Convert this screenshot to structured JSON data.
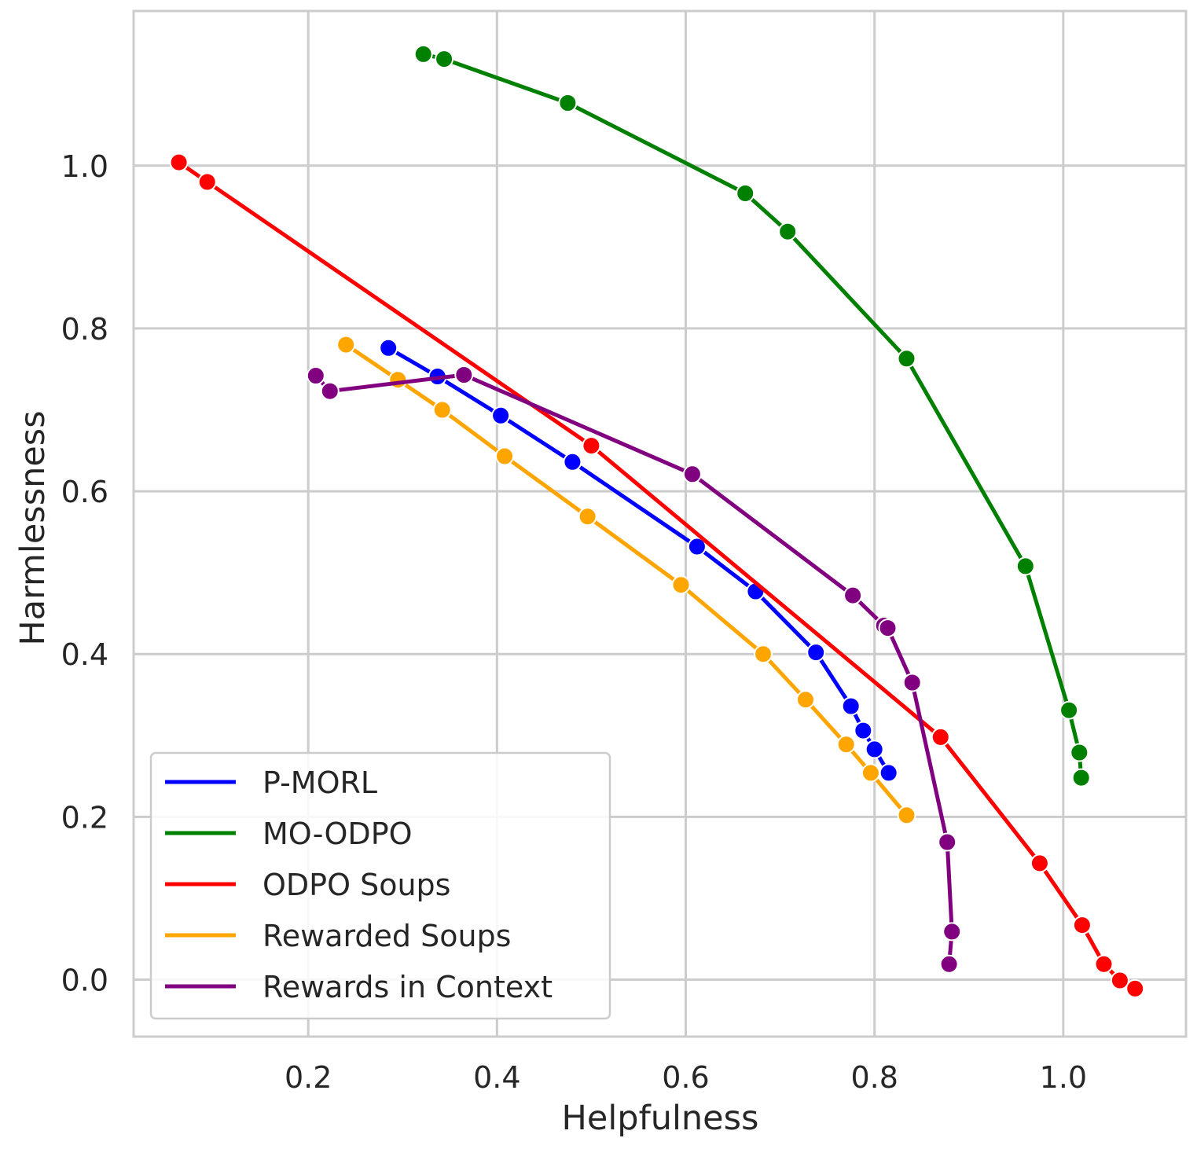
{
  "chart_data": {
    "type": "line",
    "title": "",
    "xlabel": "Helpfulness",
    "ylabel": "Harmlessness",
    "xlim": [
      0.015,
      1.13
    ],
    "ylim": [
      -0.07,
      1.19
    ],
    "xticks": [
      0.2,
      0.4,
      0.6,
      0.8,
      1.0
    ],
    "yticks": [
      0.0,
      0.2,
      0.4,
      0.6,
      0.8,
      1.0
    ],
    "xtick_labels": [
      "0.2",
      "0.4",
      "0.6",
      "0.8",
      "1.0"
    ],
    "ytick_labels": [
      "0.0",
      "0.2",
      "0.4",
      "0.6",
      "0.8",
      "1.0"
    ],
    "grid": true,
    "legend_position": "bottom-left",
    "series": [
      {
        "name": "P-MORL",
        "color": "#0000ff",
        "points": [
          [
            0.285,
            0.776
          ],
          [
            0.337,
            0.741
          ],
          [
            0.404,
            0.693
          ],
          [
            0.48,
            0.636
          ],
          [
            0.612,
            0.532
          ],
          [
            0.674,
            0.477
          ],
          [
            0.738,
            0.402
          ],
          [
            0.775,
            0.336
          ],
          [
            0.788,
            0.306
          ],
          [
            0.8,
            0.283
          ],
          [
            0.815,
            0.254
          ]
        ]
      },
      {
        "name": "MO-ODPO",
        "color": "#008000",
        "points": [
          [
            0.322,
            1.137
          ],
          [
            0.344,
            1.131
          ],
          [
            0.475,
            1.077
          ],
          [
            0.663,
            0.966
          ],
          [
            0.708,
            0.919
          ],
          [
            0.834,
            0.763
          ],
          [
            0.96,
            0.508
          ],
          [
            1.006,
            0.331
          ],
          [
            1.017,
            0.279
          ],
          [
            1.019,
            0.248
          ]
        ]
      },
      {
        "name": "ODPO Soups",
        "color": "#ff0000",
        "points": [
          [
            0.063,
            1.004
          ],
          [
            0.093,
            0.98
          ],
          [
            0.5,
            0.656
          ],
          [
            0.87,
            0.298
          ],
          [
            0.975,
            0.143
          ],
          [
            1.02,
            0.067
          ],
          [
            1.043,
            0.019
          ],
          [
            1.06,
            -0.001
          ],
          [
            1.076,
            -0.011
          ]
        ]
      },
      {
        "name": "Rewarded Soups",
        "color": "#ffa500",
        "points": [
          [
            0.24,
            0.78
          ],
          [
            0.295,
            0.737
          ],
          [
            0.342,
            0.7
          ],
          [
            0.408,
            0.643
          ],
          [
            0.496,
            0.569
          ],
          [
            0.595,
            0.485
          ],
          [
            0.682,
            0.4
          ],
          [
            0.727,
            0.344
          ],
          [
            0.77,
            0.289
          ],
          [
            0.796,
            0.254
          ],
          [
            0.834,
            0.202
          ]
        ]
      },
      {
        "name": "Rewards in Context",
        "color": "#800080",
        "points": [
          [
            0.208,
            0.742
          ],
          [
            0.223,
            0.723
          ],
          [
            0.365,
            0.743
          ],
          [
            0.607,
            0.621
          ],
          [
            0.777,
            0.472
          ],
          [
            0.81,
            0.435
          ],
          [
            0.814,
            0.432
          ],
          [
            0.84,
            0.365
          ],
          [
            0.877,
            0.169
          ],
          [
            0.882,
            0.059
          ],
          [
            0.879,
            0.019
          ]
        ]
      }
    ]
  }
}
